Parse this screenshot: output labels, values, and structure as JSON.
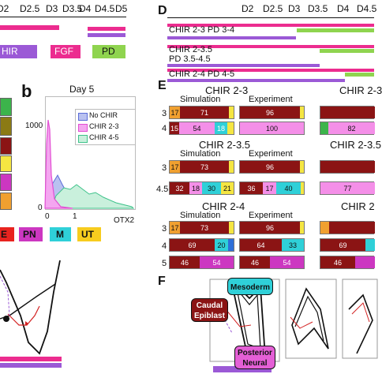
{
  "colors": {
    "chir": "#9b59d6",
    "fgf": "#ec2c8f",
    "pd": "#8fd44f",
    "brown": "#8b1414",
    "pn_pink": "#e45fd6",
    "cyan": "#2fd0d8",
    "green": "#3cb44b",
    "orange": "#f0a030",
    "yellow": "#f5e642",
    "lightpink": "#f48fe8",
    "red": "#e8231f",
    "magenta": "#cc37c1",
    "blue_m": "#2e6fd9",
    "gold": "#f7cc1e"
  },
  "panel_a_partial": {
    "ticks": [
      "D2",
      "D2.5",
      "D3",
      "D3.5",
      "D4",
      "D4.5",
      "D5"
    ],
    "legend": [
      {
        "label": "HIR",
        "color_key": "chir"
      },
      {
        "label": "FGF",
        "color_key": "fgf"
      },
      {
        "label": "PD",
        "color_key": "pd"
      }
    ]
  },
  "panel_b": {
    "letter": "b",
    "title": "Day 5",
    "y_tick": "1000",
    "y_tick0": "0",
    "x_ticks": [
      "0",
      "1"
    ],
    "x_label": "OTX2",
    "legend": [
      "No CHIR",
      "CHIR 2-3",
      "CHIR 4-5"
    ]
  },
  "left_legend": {
    "items": [
      {
        "label": "E",
        "color_key": "red"
      },
      {
        "label": "PN",
        "color_key": "magenta"
      },
      {
        "label": "M",
        "color_key": "cyan"
      },
      {
        "label": "UT",
        "color_key": "gold"
      }
    ]
  },
  "panel_d": {
    "letter": "D",
    "ticks": [
      "D2",
      "D2.5",
      "D3",
      "D3.5",
      "D4",
      "D4.5"
    ],
    "rows": [
      {
        "label": "CHIR 2-3 PD 3-4"
      },
      {
        "label": "CHIR 2-3.5",
        "label2": "PD 3.5-4.5"
      },
      {
        "label": "CHIR 2-4 PD 4-5"
      }
    ]
  },
  "panel_e": {
    "letter": "E",
    "col_sim": "Simulation",
    "col_exp": "Experiment",
    "groups": [
      {
        "title": "CHIR 2-3",
        "title_right": "CHIR 2-3",
        "rows": [
          {
            "n": "3",
            "sim": [
              "17",
              "71"
            ],
            "exp": [
              "96"
            ],
            "right": [
              ""
            ]
          },
          {
            "n": "4",
            "sim": [
              "15",
              "54",
              "18"
            ],
            "exp": [
              "100"
            ],
            "right": [
              "82"
            ]
          }
        ]
      },
      {
        "title": "CHIR 2-3.5",
        "title_right": "CHIR 2-3.5",
        "rows": [
          {
            "n": "3",
            "sim": [
              "17",
              "73"
            ],
            "exp": [
              "96"
            ],
            "right": [
              ""
            ]
          },
          {
            "n": "4.5",
            "sim": [
              "32",
              "18",
              "30",
              "21"
            ],
            "exp": [
              "36",
              "17",
              "40"
            ],
            "right": [
              "77"
            ]
          }
        ]
      },
      {
        "title": "CHIR 2-4",
        "title_right": "CHIR 2",
        "rows": [
          {
            "n": "3",
            "sim": [
              "17",
              "73"
            ],
            "exp": [
              "96"
            ],
            "right": [
              ""
            ]
          },
          {
            "n": "4",
            "sim": [
              "69",
              "20"
            ],
            "exp": [
              "64",
              "33"
            ],
            "right": [
              "69"
            ]
          },
          {
            "n": "5",
            "sim": [
              "46",
              "54"
            ],
            "exp": [
              "46",
              "54"
            ],
            "right": [
              "46"
            ]
          }
        ]
      }
    ]
  },
  "panel_f": {
    "letter": "F",
    "labels": [
      "Mesoderm",
      "Caudal",
      "Epiblast",
      "Posterior",
      "Neural"
    ]
  }
}
